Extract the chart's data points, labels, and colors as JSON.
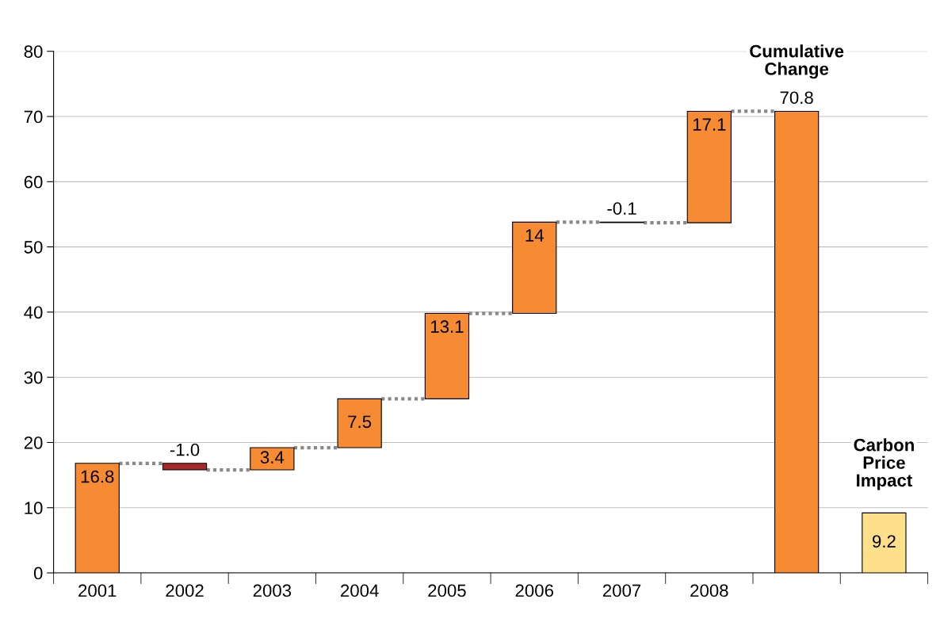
{
  "chart_data": {
    "type": "bar",
    "categories": [
      "2001",
      "2002",
      "2003",
      "2004",
      "2005",
      "2006",
      "2007",
      "2008",
      null,
      null
    ],
    "values": [
      16.8,
      -1.0,
      3.4,
      7.5,
      13.1,
      14,
      -0.1,
      17.1,
      70.8,
      9.2
    ],
    "base": [
      0,
      16.8,
      15.8,
      19.2,
      26.7,
      39.8,
      53.8,
      53.7,
      0,
      0
    ],
    "colors": [
      "#f68b33",
      "#a52a2a",
      "#f68b33",
      "#f68b33",
      "#f68b33",
      "#f68b33",
      "#000000",
      "#f68b33",
      "#f68b33",
      "#ffe08a"
    ],
    "value_labels": [
      "16.8",
      "-1.0",
      "3.4",
      "7.5",
      "13.1",
      "14",
      "-0.1",
      "17.1",
      "70.8",
      "9.2"
    ],
    "annotations": [
      "Cumulative Change",
      "Carbon Price Impact"
    ],
    "ylim": [
      0,
      80
    ],
    "yticks": [
      0,
      10,
      20,
      30,
      40,
      50,
      60,
      70,
      80
    ],
    "grid": "y",
    "legend": false
  }
}
